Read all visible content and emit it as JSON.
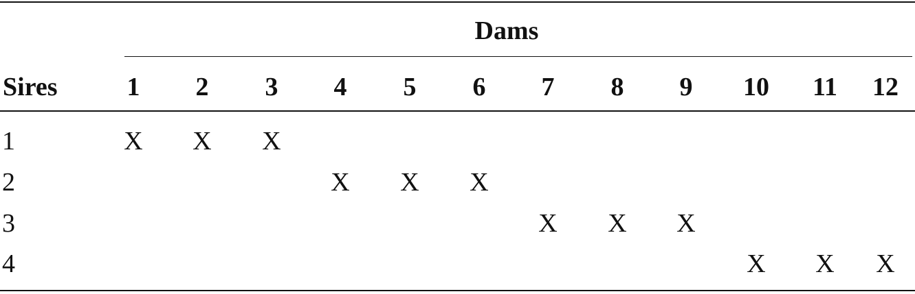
{
  "table": {
    "group_header": "Dams",
    "row_header": "Sires",
    "columns": [
      "1",
      "2",
      "3",
      "4",
      "5",
      "6",
      "7",
      "8",
      "9",
      "10",
      "11",
      "12"
    ],
    "rows": [
      {
        "label": "1",
        "cells": [
          "X",
          "X",
          "X",
          "",
          "",
          "",
          "",
          "",
          "",
          "",
          "",
          ""
        ]
      },
      {
        "label": "2",
        "cells": [
          "",
          "",
          "",
          "X",
          "X",
          "X",
          "",
          "",
          "",
          "",
          "",
          ""
        ]
      },
      {
        "label": "3",
        "cells": [
          "",
          "",
          "",
          "",
          "",
          "",
          "X",
          "X",
          "X",
          "",
          "",
          ""
        ]
      },
      {
        "label": "4",
        "cells": [
          "",
          "",
          "",
          "",
          "",
          "",
          "",
          "",
          "",
          "X",
          "X",
          "X"
        ]
      }
    ]
  }
}
